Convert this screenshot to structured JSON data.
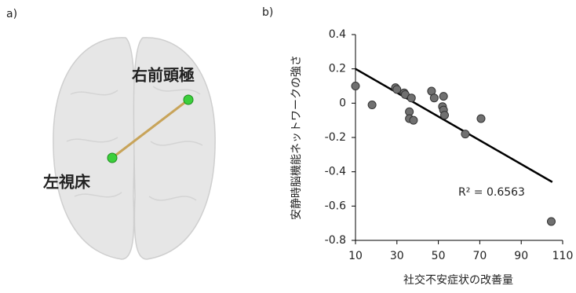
{
  "panel_a": {
    "label": "a)",
    "regions": [
      "右前頭極",
      "左視床"
    ]
  },
  "chart_data": {
    "type": "scatter",
    "panel_label": "b)",
    "x_label": "社交不安症状の改善量",
    "y_label": "安静時脳機能ネットワークの強さ",
    "annotation": "R² = 0.6563",
    "color": "#707070",
    "x": [
      10,
      18,
      29.3,
      30,
      33.5,
      34,
      37,
      36,
      36,
      38,
      46.7,
      48,
      52.5,
      52,
      52.5,
      53,
      63,
      70.6,
      104.5
    ],
    "values": [
      0.1,
      -0.01,
      0.09,
      0.08,
      0.06,
      0.05,
      0.03,
      -0.05,
      -0.09,
      -0.1,
      0.07,
      0.03,
      0.04,
      -0.02,
      -0.04,
      -0.07,
      -0.18,
      -0.09,
      -0.69
    ],
    "trendline": {
      "x": [
        10,
        105
      ],
      "y": [
        0.2,
        -0.46
      ]
    },
    "xlim": [
      10,
      110
    ],
    "xticks": [
      10,
      30,
      50,
      70,
      90,
      110
    ],
    "ylim": [
      -0.8,
      0.4
    ],
    "yticks": [
      0.4,
      0.2,
      0,
      -0.2,
      -0.4,
      -0.6,
      -0.8
    ],
    "grid": false
  }
}
